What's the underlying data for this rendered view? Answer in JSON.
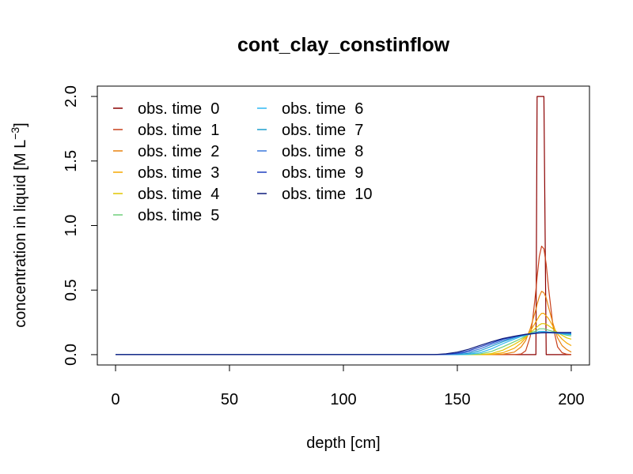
{
  "chart_data": {
    "type": "line",
    "title": "cont_clay_constinflow",
    "xlabel": "depth [cm]",
    "ylabel_parts": [
      "concentration in liquid [M L",
      "−3",
      "]"
    ],
    "xlim": [
      -8,
      208
    ],
    "ylim": [
      -0.08,
      2.08
    ],
    "x_ticks": [
      0,
      50,
      100,
      150,
      200
    ],
    "y_ticks": [
      0.0,
      0.5,
      1.0,
      1.5,
      2.0
    ],
    "x_tick_labels": [
      "0",
      "50",
      "100",
      "150",
      "200"
    ],
    "y_tick_labels": [
      "0.0",
      "0.5",
      "1.0",
      "1.5",
      "2.0"
    ],
    "grid": false,
    "legend_position": "top-left",
    "x": [
      0,
      140,
      145,
      150,
      155,
      160,
      165,
      170,
      175,
      178,
      180,
      182,
      183,
      184,
      184.5,
      185,
      186,
      187,
      188,
      189,
      190,
      192,
      194,
      196,
      198,
      200
    ],
    "series": [
      {
        "name": "obs. time  0",
        "color": "#8b0000",
        "values": [
          0,
          0,
          0,
          0,
          0,
          0,
          0,
          0,
          0,
          0,
          0,
          0,
          0,
          0,
          0,
          2.0,
          2.0,
          2.0,
          2.0,
          0,
          0,
          0,
          0,
          0,
          0,
          0
        ]
      },
      {
        "name": "obs. time  1",
        "color": "#c8401b",
        "values": [
          0,
          0,
          0,
          0,
          0,
          0,
          0,
          0,
          0,
          0.005,
          0.03,
          0.14,
          0.26,
          0.42,
          0.5,
          0.6,
          0.76,
          0.84,
          0.82,
          0.7,
          0.52,
          0.22,
          0.06,
          0.015,
          0.003,
          0.001
        ]
      },
      {
        "name": "obs. time  2",
        "color": "#e8820f",
        "values": [
          0,
          0,
          0,
          0,
          0,
          0,
          0,
          0.003,
          0.02,
          0.06,
          0.11,
          0.2,
          0.26,
          0.32,
          0.35,
          0.39,
          0.45,
          0.49,
          0.48,
          0.44,
          0.37,
          0.24,
          0.13,
          0.07,
          0.04,
          0.02
        ]
      },
      {
        "name": "obs. time  3",
        "color": "#f5a800",
        "values": [
          0,
          0,
          0,
          0,
          0,
          0,
          0.002,
          0.015,
          0.05,
          0.09,
          0.13,
          0.18,
          0.21,
          0.24,
          0.255,
          0.27,
          0.3,
          0.32,
          0.32,
          0.3,
          0.28,
          0.22,
          0.16,
          0.12,
          0.09,
          0.07
        ]
      },
      {
        "name": "obs. time  4",
        "color": "#e0c500",
        "values": [
          0,
          0,
          0,
          0,
          0,
          0.001,
          0.008,
          0.035,
          0.08,
          0.11,
          0.14,
          0.17,
          0.185,
          0.2,
          0.21,
          0.215,
          0.23,
          0.24,
          0.24,
          0.235,
          0.225,
          0.2,
          0.17,
          0.15,
          0.13,
          0.12
        ]
      },
      {
        "name": "obs. time  5",
        "color": "#6fcf7a",
        "values": [
          0,
          0,
          0,
          0,
          0.001,
          0.005,
          0.025,
          0.06,
          0.1,
          0.125,
          0.145,
          0.165,
          0.175,
          0.18,
          0.185,
          0.19,
          0.2,
          0.2,
          0.2,
          0.195,
          0.19,
          0.18,
          0.17,
          0.16,
          0.15,
          0.145
        ]
      },
      {
        "name": "obs. time  6",
        "color": "#2eb8f2",
        "values": [
          0,
          0,
          0,
          0,
          0.003,
          0.015,
          0.045,
          0.085,
          0.12,
          0.14,
          0.15,
          0.16,
          0.165,
          0.17,
          0.172,
          0.175,
          0.18,
          0.18,
          0.18,
          0.178,
          0.175,
          0.17,
          0.165,
          0.16,
          0.158,
          0.155
        ]
      },
      {
        "name": "obs. time  7",
        "color": "#1e9fce",
        "values": [
          0,
          0,
          0,
          0.002,
          0.01,
          0.03,
          0.065,
          0.1,
          0.13,
          0.145,
          0.152,
          0.158,
          0.162,
          0.165,
          0.167,
          0.168,
          0.17,
          0.172,
          0.172,
          0.171,
          0.17,
          0.168,
          0.166,
          0.164,
          0.163,
          0.162
        ]
      },
      {
        "name": "obs. time  8",
        "color": "#3a79dc",
        "values": [
          0,
          0,
          0.001,
          0.006,
          0.02,
          0.045,
          0.08,
          0.11,
          0.135,
          0.148,
          0.155,
          0.16,
          0.162,
          0.164,
          0.165,
          0.166,
          0.168,
          0.169,
          0.17,
          0.17,
          0.17,
          0.169,
          0.168,
          0.167,
          0.166,
          0.166
        ]
      },
      {
        "name": "obs. time  9",
        "color": "#1f3fbf",
        "values": [
          0,
          0,
          0.003,
          0.012,
          0.03,
          0.06,
          0.09,
          0.12,
          0.14,
          0.15,
          0.157,
          0.161,
          0.163,
          0.165,
          0.166,
          0.167,
          0.168,
          0.169,
          0.17,
          0.17,
          0.17,
          0.17,
          0.17,
          0.17,
          0.17,
          0.17
        ]
      },
      {
        "name": "obs. time  10",
        "color": "#0c1a7a",
        "values": [
          0,
          0.001,
          0.007,
          0.02,
          0.042,
          0.072,
          0.1,
          0.125,
          0.143,
          0.152,
          0.158,
          0.162,
          0.164,
          0.166,
          0.167,
          0.168,
          0.169,
          0.17,
          0.171,
          0.171,
          0.172,
          0.172,
          0.172,
          0.172,
          0.172,
          0.172
        ]
      }
    ]
  }
}
